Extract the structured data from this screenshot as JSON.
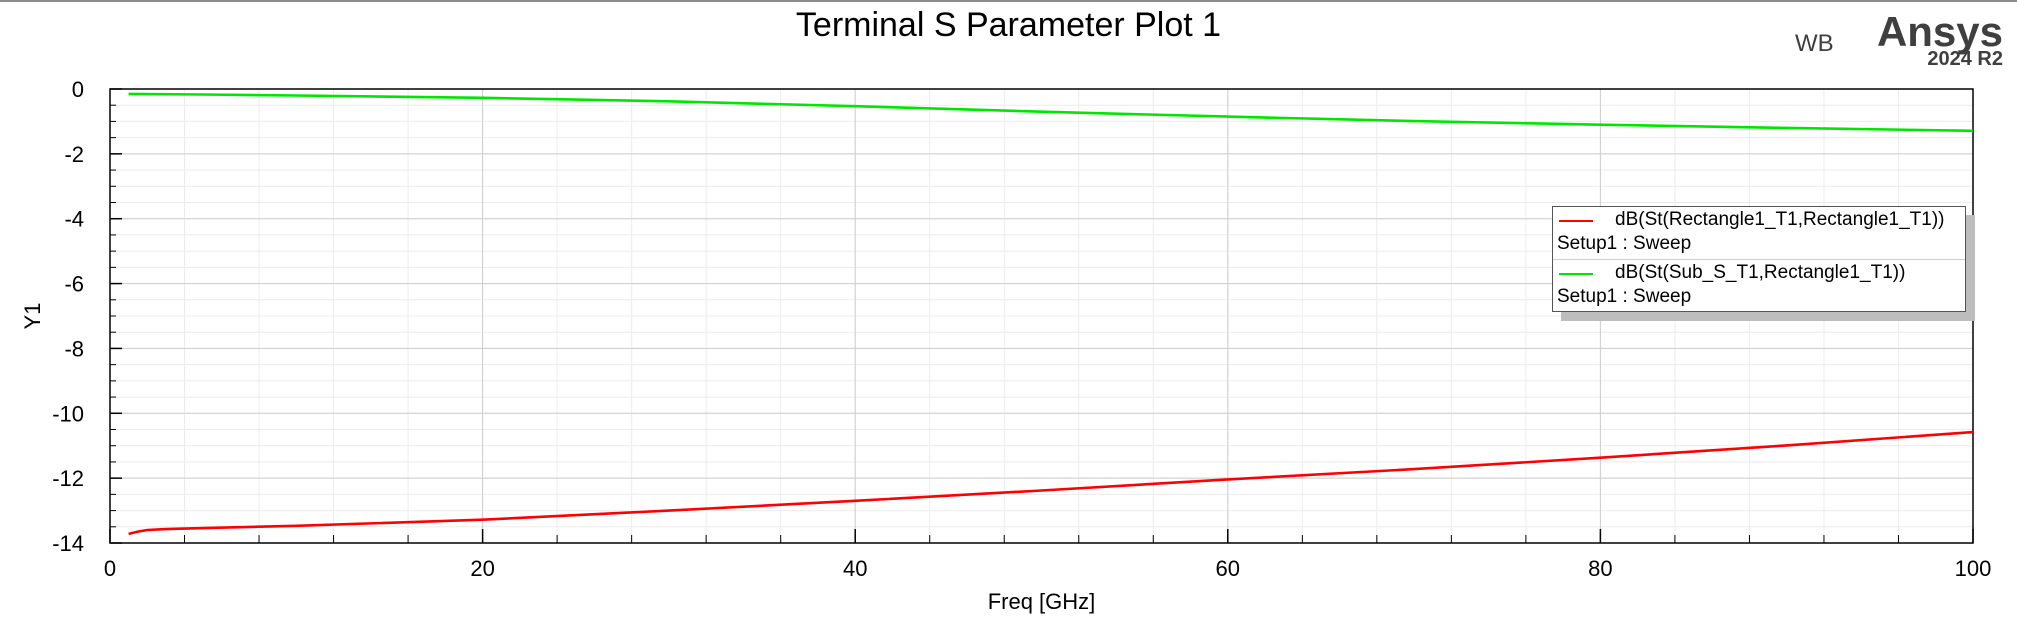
{
  "header": {
    "title": "Terminal S Parameter Plot 1"
  },
  "logo": {
    "prefix": "WB",
    "brand": "Ansys",
    "version": "2024 R2"
  },
  "chart_data": {
    "type": "line",
    "title": "Terminal S Parameter Plot 1",
    "xlabel": "Freq [GHz]",
    "ylabel": "Y1",
    "xlim": [
      0,
      100
    ],
    "ylim": [
      -14,
      0
    ],
    "xticks": [
      0,
      20,
      40,
      60,
      80,
      100
    ],
    "yticks": [
      0,
      -2,
      -4,
      -6,
      -8,
      -10,
      -12,
      -14
    ],
    "grid": true,
    "legend_position": "right",
    "series": [
      {
        "name": "dB(St(Rectangle1_T1,Rectangle1_T1))",
        "setup": "Setup1 : Sweep",
        "color": "#ff0000",
        "x": [
          1,
          1.5,
          2,
          3,
          5,
          10,
          20,
          30,
          40,
          50,
          60,
          70,
          80,
          90,
          100
        ],
        "y": [
          -13.72,
          -13.65,
          -13.6,
          -13.57,
          -13.54,
          -13.47,
          -13.28,
          -13.0,
          -12.7,
          -12.38,
          -12.04,
          -11.72,
          -11.37,
          -10.99,
          -10.58
        ]
      },
      {
        "name": "dB(St(Sub_S_T1,Rectangle1_T1))",
        "setup": "Setup1 : Sweep",
        "color": "#00e600",
        "x": [
          1,
          5,
          10,
          20,
          30,
          40,
          50,
          60,
          70,
          80,
          90,
          100
        ],
        "y": [
          -0.15,
          -0.17,
          -0.2,
          -0.27,
          -0.38,
          -0.53,
          -0.7,
          -0.85,
          -0.99,
          -1.1,
          -1.2,
          -1.29
        ]
      }
    ]
  }
}
